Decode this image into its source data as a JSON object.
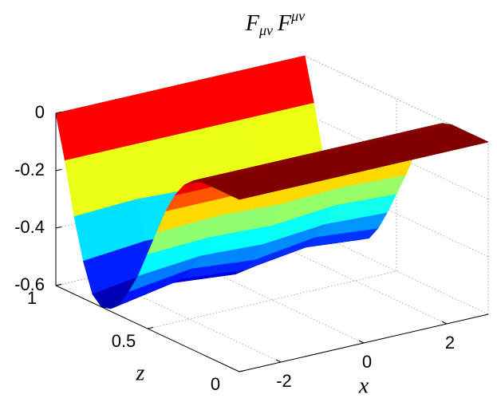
{
  "chart_data": {
    "type": "surface",
    "title": [
      {
        "text": "F"
      },
      {
        "text": "μν",
        "shift": "sub"
      },
      {
        "text": "F"
      },
      {
        "text": "μν",
        "shift": "super"
      }
    ],
    "xlabel": "x",
    "ylabel": "z",
    "x": [
      -3,
      -1.5,
      0,
      1.5,
      3
    ],
    "y": [
      0,
      0.05,
      0.1,
      0.15,
      0.2,
      0.25,
      0.3,
      0.35,
      0.4,
      0.45,
      0.5,
      0.55,
      0.6,
      0.65,
      0.7,
      0.75,
      0.8,
      0.85,
      0.9,
      0.95,
      1
    ],
    "values": [
      [
        0,
        0,
        0,
        0,
        0
      ],
      [
        0,
        0,
        0,
        0,
        0
      ],
      [
        0,
        0,
        0,
        0,
        0
      ],
      [
        0,
        0,
        0,
        0,
        0
      ],
      [
        0,
        0,
        0,
        0,
        0
      ],
      [
        -0.01,
        -0.01,
        -0.01,
        -0.01,
        -0.01
      ],
      [
        -0.04,
        -0.04,
        -0.04,
        -0.04,
        -0.04
      ],
      [
        -0.09,
        -0.09,
        -0.09,
        -0.09,
        -0.09
      ],
      [
        -0.16,
        -0.16,
        -0.16,
        -0.16,
        -0.16
      ],
      [
        -0.25,
        -0.24,
        -0.25,
        -0.24,
        -0.25
      ],
      [
        -0.34,
        -0.33,
        -0.34,
        -0.32,
        -0.33
      ],
      [
        -0.43,
        -0.41,
        -0.42,
        -0.4,
        -0.41
      ],
      [
        -0.5,
        -0.47,
        -0.49,
        -0.46,
        -0.48
      ],
      [
        -0.56,
        -0.52,
        -0.54,
        -0.51,
        -0.53
      ],
      [
        -0.59,
        -0.55,
        -0.57,
        -0.53,
        -0.55
      ],
      [
        -0.6,
        -0.56,
        -0.58,
        -0.54,
        -0.56
      ],
      [
        -0.57,
        -0.54,
        -0.55,
        -0.52,
        -0.54
      ],
      [
        -0.47,
        -0.45,
        -0.46,
        -0.44,
        -0.45
      ],
      [
        -0.33,
        -0.32,
        -0.33,
        -0.32,
        -0.32
      ],
      [
        -0.15,
        -0.15,
        -0.15,
        -0.15,
        -0.15
      ],
      [
        0,
        0,
        0,
        0,
        0
      ]
    ],
    "xlim": [
      -3,
      3
    ],
    "ylim": [
      0,
      1
    ],
    "zlim": [
      -0.6,
      0
    ],
    "xticks": [
      -2,
      0,
      2
    ],
    "yticks": [
      0,
      0.5,
      1
    ],
    "zticks": [
      0,
      -0.2,
      -0.4,
      -0.6
    ],
    "colormap": "jet",
    "grid": true
  }
}
